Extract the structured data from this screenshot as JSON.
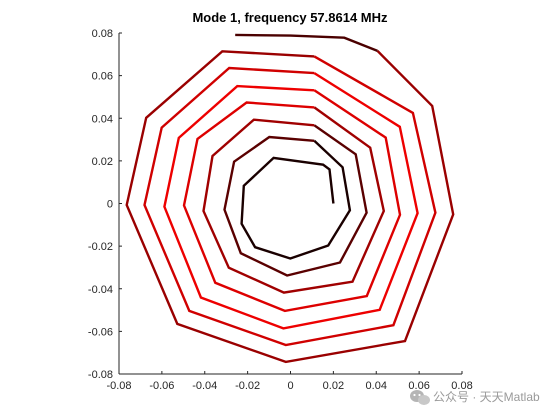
{
  "chart_data": {
    "type": "line",
    "title": "Mode 1, frequency 57.8614 MHz",
    "xlim": [
      -0.08,
      0.08
    ],
    "ylim": [
      -0.08,
      0.08
    ],
    "xticks": [
      -0.08,
      -0.06,
      -0.04,
      -0.02,
      0,
      0.02,
      0.04,
      0.06,
      0.08
    ],
    "yticks": [
      -0.08,
      -0.06,
      -0.04,
      -0.02,
      0,
      0.02,
      0.04,
      0.06,
      0.08
    ],
    "xtick_labels": [
      "-0.08",
      "-0.06",
      "-0.04",
      "-0.02",
      "0",
      "0.02",
      "0.04",
      "0.06",
      "0.08"
    ],
    "ytick_labels": [
      "-0.08",
      "-0.06",
      "-0.04",
      "-0.02",
      "0",
      "0.02",
      "0.04",
      "0.06",
      "0.08"
    ],
    "grid": false,
    "description_series": "Octagonal spiral coil trace; segment color shades from black at the inner end, through bright red in the middle turns, to dark red/black at the outer end",
    "segments": [
      {
        "color": "#1a0000",
        "points": [
          [
            0.02,
            0.0
          ],
          [
            0.0182,
            0.016
          ],
          [
            0.0152,
            0.0182
          ],
          [
            -0.0079,
            0.0214
          ],
          [
            -0.0218,
            0.0083
          ],
          [
            -0.0228,
            -0.0095
          ],
          [
            -0.0165,
            -0.0205
          ],
          [
            -0.0001,
            -0.0258
          ],
          [
            0.0176,
            -0.0197
          ],
          [
            0.0277,
            -0.0032
          ],
          [
            0.0243,
            0.017
          ],
          [
            0.0111,
            0.0294
          ]
        ]
      },
      {
        "color": "#5a0000",
        "points": [
          [
            0.0111,
            0.0294
          ],
          [
            -0.0099,
            0.0312
          ],
          [
            -0.0263,
            0.0196
          ],
          [
            -0.0308,
            -0.0029
          ],
          [
            -0.0232,
            -0.0233
          ],
          [
            -0.0016,
            -0.0338
          ],
          [
            0.0231,
            -0.0277
          ],
          [
            0.0355,
            -0.0043
          ],
          [
            0.0304,
            0.0231
          ],
          [
            0.0111,
            0.0367
          ]
        ]
      },
      {
        "color": "#a00000",
        "points": [
          [
            0.0111,
            0.0367
          ],
          [
            -0.0171,
            0.0393
          ],
          [
            -0.0364,
            0.0223
          ],
          [
            -0.0406,
            -0.0035
          ],
          [
            -0.0288,
            -0.0301
          ],
          [
            -0.0031,
            -0.0418
          ],
          [
            0.0289,
            -0.0367
          ],
          [
            0.0435,
            -0.0035
          ],
          [
            0.0372,
            0.0262
          ],
          [
            0.0111,
            0.0451
          ]
        ]
      },
      {
        "color": "#dd0000",
        "points": [
          [
            0.0111,
            0.0451
          ],
          [
            -0.0205,
            0.0474
          ],
          [
            -0.0434,
            0.0303
          ],
          [
            -0.0497,
            -0.0009
          ],
          [
            -0.0351,
            -0.0372
          ],
          [
            -0.0026,
            -0.0504
          ],
          [
            0.0356,
            -0.0434
          ],
          [
            0.0511,
            -0.0053
          ],
          [
            0.0444,
            0.0309
          ],
          [
            0.0111,
            0.0531
          ]
        ]
      },
      {
        "color": "#ee0000",
        "points": [
          [
            0.0111,
            0.0531
          ],
          [
            -0.0248,
            0.0551
          ],
          [
            -0.0521,
            0.0308
          ],
          [
            -0.0588,
            -0.0015
          ],
          [
            -0.0418,
            -0.0441
          ],
          [
            -0.0033,
            -0.0586
          ],
          [
            0.0416,
            -0.0499
          ],
          [
            0.0593,
            -0.0045
          ],
          [
            0.051,
            0.036
          ],
          [
            0.0111,
            0.0612
          ]
        ]
      },
      {
        "color": "#d00000",
        "points": [
          [
            0.0111,
            0.0612
          ],
          [
            -0.0286,
            0.0636
          ],
          [
            -0.0601,
            0.0356
          ],
          [
            -0.0681,
            -0.0007
          ],
          [
            -0.0472,
            -0.0504
          ],
          [
            -0.0022,
            -0.0664
          ],
          [
            0.048,
            -0.0571
          ],
          [
            0.0676,
            -0.0043
          ],
          [
            0.0571,
            0.0425
          ],
          [
            0.0111,
            0.069
          ]
        ]
      },
      {
        "color": "#9a0000",
        "points": [
          [
            0.0111,
            0.069
          ],
          [
            -0.0318,
            0.0714
          ],
          [
            -0.0673,
            0.0402
          ],
          [
            -0.0764,
            -0.0007
          ],
          [
            -0.0528,
            -0.0565
          ],
          [
            -0.0022,
            -0.0743
          ],
          [
            0.0534,
            -0.0645
          ],
          [
            0.0759,
            -0.0051
          ],
          [
            0.0661,
            0.0458
          ],
          [
            0.0406,
            0.0716
          ]
        ]
      },
      {
        "color": "#4a0000",
        "points": [
          [
            0.0406,
            0.0716
          ],
          [
            0.0251,
            0.0778
          ],
          [
            0.0,
            0.0788
          ],
          [
            -0.0258,
            0.0791
          ]
        ]
      }
    ]
  },
  "watermark": {
    "icon": "wechat-icon",
    "text": "公众号 · 天天Matlab"
  }
}
